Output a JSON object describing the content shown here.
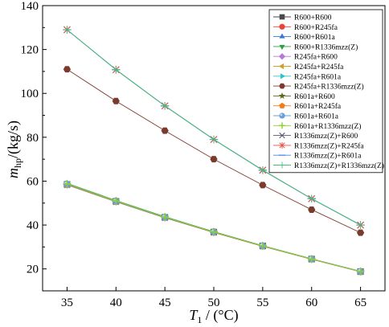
{
  "chart_data": {
    "type": "line",
    "title": "",
    "xlabel": {
      "symbol": "T",
      "subscript": "1",
      "unit": " / (°C)"
    },
    "ylabel": {
      "symbol": "m",
      "subscript": "hp",
      "unit": "/(kg/s)"
    },
    "x": [
      35,
      40,
      45,
      50,
      55,
      60,
      65
    ],
    "xlim": [
      32.5,
      67.5
    ],
    "ylim": [
      10,
      140
    ],
    "xticks": [
      35,
      40,
      45,
      50,
      55,
      60,
      65
    ],
    "yticks": [
      20,
      40,
      60,
      80,
      100,
      120,
      140
    ],
    "grid": false,
    "legend_position": "top-right",
    "series": [
      {
        "name": "R600+R600",
        "color": "#4a4a4a",
        "marker": "square",
        "values": [
          58.5,
          50.8,
          43.5,
          36.8,
          30.5,
          24.5,
          18.8
        ]
      },
      {
        "name": "R600+R245fa",
        "color": "#e8443a",
        "marker": "circle",
        "values": [
          58.6,
          50.9,
          43.6,
          36.9,
          30.5,
          24.5,
          18.8
        ]
      },
      {
        "name": "R600+R601a",
        "color": "#3a78d6",
        "marker": "triangle-up",
        "values": [
          58.8,
          51.0,
          43.7,
          37.0,
          30.6,
          24.6,
          18.9
        ]
      },
      {
        "name": "R600+R1336mzz(Z)",
        "color": "#2f9e44",
        "marker": "triangle-down",
        "values": [
          59.0,
          51.2,
          43.8,
          37.0,
          30.6,
          24.6,
          18.9
        ]
      },
      {
        "name": "R245fa+R600",
        "color": "#b57ad6",
        "marker": "diamond",
        "values": [
          58.4,
          50.7,
          43.4,
          36.7,
          30.4,
          24.4,
          18.8
        ]
      },
      {
        "name": "R245fa+R245fa",
        "color": "#c9a227",
        "marker": "triangle-left",
        "values": [
          58.5,
          50.8,
          43.5,
          36.8,
          30.5,
          24.5,
          18.8
        ]
      },
      {
        "name": "R245fa+R601a",
        "color": "#2bc4c4",
        "marker": "triangle-right",
        "values": [
          58.7,
          50.9,
          43.6,
          36.9,
          30.5,
          24.5,
          18.8
        ]
      },
      {
        "name": "R245fa+R1336mzz(Z)",
        "color": "#7a3b2e",
        "marker": "hexagon",
        "values": [
          111.0,
          96.5,
          83.0,
          70.0,
          58.2,
          47.0,
          36.5
        ]
      },
      {
        "name": "R601a+R600",
        "color": "#5a6b1a",
        "marker": "star",
        "values": [
          58.3,
          50.6,
          43.3,
          36.6,
          30.3,
          24.4,
          18.7
        ]
      },
      {
        "name": "R601a+R245fa",
        "color": "#f07c1a",
        "marker": "pentagon",
        "values": [
          58.4,
          50.7,
          43.4,
          36.7,
          30.4,
          24.4,
          18.7
        ]
      },
      {
        "name": "R601a+R601a",
        "color": "#6a9fd8",
        "marker": "sphere",
        "values": [
          58.6,
          50.8,
          43.5,
          36.8,
          30.5,
          24.5,
          18.8
        ]
      },
      {
        "name": "R601a+R1336mzz(Z)",
        "color": "#8fd02a",
        "marker": "plus",
        "values": [
          58.8,
          51.0,
          43.6,
          36.9,
          30.5,
          24.5,
          18.8
        ]
      },
      {
        "name": "R1336mzz(Z)+R600",
        "color": "#5a5a72",
        "marker": "x",
        "values": [
          129.0,
          110.8,
          94.3,
          79.0,
          65.0,
          52.0,
          40.0
        ]
      },
      {
        "name": "R1336mzz(Z)+R245fa",
        "color": "#e0574a",
        "marker": "asterisk",
        "values": [
          129.0,
          110.8,
          94.3,
          79.0,
          65.0,
          52.0,
          40.0
        ]
      },
      {
        "name": "R1336mzz(Z)+R601a",
        "color": "#4a86e8",
        "marker": "line",
        "values": [
          129.0,
          110.8,
          94.3,
          79.0,
          65.0,
          52.0,
          40.0
        ]
      },
      {
        "name": "R1336mzz(Z)+R1336mzz(Z)",
        "color": "#3ec47a",
        "marker": "plus-thin",
        "values": [
          129.0,
          110.8,
          94.3,
          79.0,
          65.0,
          52.0,
          40.0
        ]
      }
    ]
  }
}
